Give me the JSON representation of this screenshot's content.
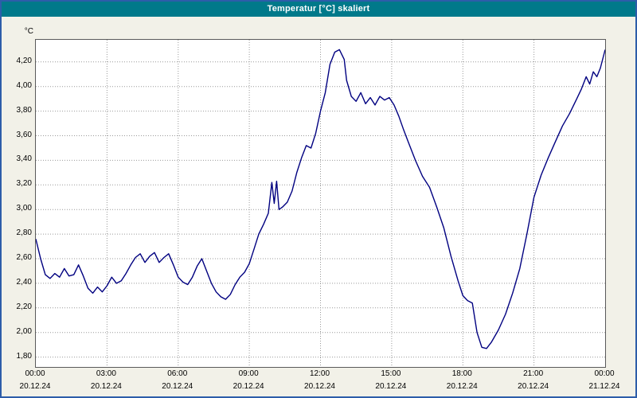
{
  "window": {
    "title": "Temperatur [°C] skaliert"
  },
  "chart_data": {
    "type": "line",
    "title": "Temperatur [°C] skaliert",
    "unit_label": "°C",
    "line_color": "#000080",
    "grid_color": "#999999",
    "xlim": [
      0,
      24
    ],
    "ylim": [
      1.72,
      4.38
    ],
    "legend": "none",
    "grid": "dotted",
    "y_ticks": [
      {
        "value": 4.2,
        "label": "4,20"
      },
      {
        "value": 4.0,
        "label": "4,00"
      },
      {
        "value": 3.8,
        "label": "3,80"
      },
      {
        "value": 3.6,
        "label": "3,60"
      },
      {
        "value": 3.4,
        "label": "3,40"
      },
      {
        "value": 3.2,
        "label": "3,20"
      },
      {
        "value": 3.0,
        "label": "3,00"
      },
      {
        "value": 2.8,
        "label": "2,80"
      },
      {
        "value": 2.6,
        "label": "2,60"
      },
      {
        "value": 2.4,
        "label": "2,40"
      },
      {
        "value": 2.2,
        "label": "2,20"
      },
      {
        "value": 2.0,
        "label": "2,00"
      },
      {
        "value": 1.8,
        "label": "1,80"
      }
    ],
    "x_ticks": [
      {
        "value": 0,
        "time": "00:00",
        "date": "20.12.24"
      },
      {
        "value": 3,
        "time": "03:00",
        "date": "20.12.24"
      },
      {
        "value": 6,
        "time": "06:00",
        "date": "20.12.24"
      },
      {
        "value": 9,
        "time": "09:00",
        "date": "20.12.24"
      },
      {
        "value": 12,
        "time": "12:00",
        "date": "20.12.24"
      },
      {
        "value": 15,
        "time": "15:00",
        "date": "20.12.24"
      },
      {
        "value": 18,
        "time": "18:00",
        "date": "20.12.24"
      },
      {
        "value": 21,
        "time": "21:00",
        "date": "20.12.24"
      },
      {
        "value": 24,
        "time": "00:00",
        "date": "21.12.24"
      }
    ],
    "series_name": "Temperatur",
    "points": [
      [
        0,
        2.76
      ],
      [
        0.2,
        2.6
      ],
      [
        0.4,
        2.47
      ],
      [
        0.6,
        2.44
      ],
      [
        0.8,
        2.48
      ],
      [
        1,
        2.45
      ],
      [
        1.2,
        2.52
      ],
      [
        1.4,
        2.46
      ],
      [
        1.6,
        2.47
      ],
      [
        1.8,
        2.55
      ],
      [
        2,
        2.46
      ],
      [
        2.2,
        2.36
      ],
      [
        2.4,
        2.32
      ],
      [
        2.6,
        2.37
      ],
      [
        2.8,
        2.33
      ],
      [
        3,
        2.38
      ],
      [
        3.2,
        2.45
      ],
      [
        3.4,
        2.4
      ],
      [
        3.6,
        2.42
      ],
      [
        3.8,
        2.48
      ],
      [
        4,
        2.55
      ],
      [
        4.2,
        2.61
      ],
      [
        4.4,
        2.64
      ],
      [
        4.6,
        2.57
      ],
      [
        4.8,
        2.62
      ],
      [
        5,
        2.65
      ],
      [
        5.2,
        2.57
      ],
      [
        5.4,
        2.61
      ],
      [
        5.6,
        2.64
      ],
      [
        5.8,
        2.55
      ],
      [
        6,
        2.45
      ],
      [
        6.2,
        2.41
      ],
      [
        6.4,
        2.39
      ],
      [
        6.6,
        2.45
      ],
      [
        6.8,
        2.54
      ],
      [
        7,
        2.6
      ],
      [
        7.2,
        2.5
      ],
      [
        7.4,
        2.4
      ],
      [
        7.6,
        2.33
      ],
      [
        7.8,
        2.29
      ],
      [
        8,
        2.27
      ],
      [
        8.2,
        2.31
      ],
      [
        8.4,
        2.39
      ],
      [
        8.6,
        2.45
      ],
      [
        8.8,
        2.49
      ],
      [
        9,
        2.56
      ],
      [
        9.2,
        2.68
      ],
      [
        9.4,
        2.8
      ],
      [
        9.6,
        2.88
      ],
      [
        9.8,
        2.97
      ],
      [
        9.95,
        3.22
      ],
      [
        10.05,
        3.05
      ],
      [
        10.15,
        3.23
      ],
      [
        10.25,
        3.0
      ],
      [
        10.4,
        3.02
      ],
      [
        10.6,
        3.06
      ],
      [
        10.8,
        3.15
      ],
      [
        11,
        3.3
      ],
      [
        11.2,
        3.42
      ],
      [
        11.4,
        3.52
      ],
      [
        11.6,
        3.5
      ],
      [
        11.8,
        3.62
      ],
      [
        12,
        3.8
      ],
      [
        12.2,
        3.95
      ],
      [
        12.4,
        4.18
      ],
      [
        12.6,
        4.28
      ],
      [
        12.8,
        4.3
      ],
      [
        13,
        4.22
      ],
      [
        13.1,
        4.05
      ],
      [
        13.3,
        3.92
      ],
      [
        13.5,
        3.88
      ],
      [
        13.7,
        3.95
      ],
      [
        13.9,
        3.86
      ],
      [
        14.1,
        3.91
      ],
      [
        14.3,
        3.85
      ],
      [
        14.5,
        3.92
      ],
      [
        14.7,
        3.89
      ],
      [
        14.9,
        3.91
      ],
      [
        15.1,
        3.85
      ],
      [
        15.3,
        3.76
      ],
      [
        15.5,
        3.65
      ],
      [
        15.7,
        3.55
      ],
      [
        16,
        3.4
      ],
      [
        16.3,
        3.27
      ],
      [
        16.6,
        3.18
      ],
      [
        16.9,
        3.02
      ],
      [
        17.2,
        2.85
      ],
      [
        17.5,
        2.62
      ],
      [
        17.8,
        2.42
      ],
      [
        18,
        2.3
      ],
      [
        18.2,
        2.26
      ],
      [
        18.4,
        2.24
      ],
      [
        18.6,
        2.0
      ],
      [
        18.8,
        1.88
      ],
      [
        19,
        1.87
      ],
      [
        19.2,
        1.92
      ],
      [
        19.5,
        2.02
      ],
      [
        19.8,
        2.15
      ],
      [
        20.1,
        2.32
      ],
      [
        20.4,
        2.52
      ],
      [
        20.7,
        2.8
      ],
      [
        21,
        3.1
      ],
      [
        21.3,
        3.28
      ],
      [
        21.6,
        3.42
      ],
      [
        21.9,
        3.55
      ],
      [
        22.2,
        3.68
      ],
      [
        22.5,
        3.78
      ],
      [
        22.8,
        3.9
      ],
      [
        23,
        3.98
      ],
      [
        23.2,
        4.08
      ],
      [
        23.35,
        4.02
      ],
      [
        23.5,
        4.12
      ],
      [
        23.65,
        4.08
      ],
      [
        23.8,
        4.15
      ],
      [
        24,
        4.3
      ]
    ]
  }
}
